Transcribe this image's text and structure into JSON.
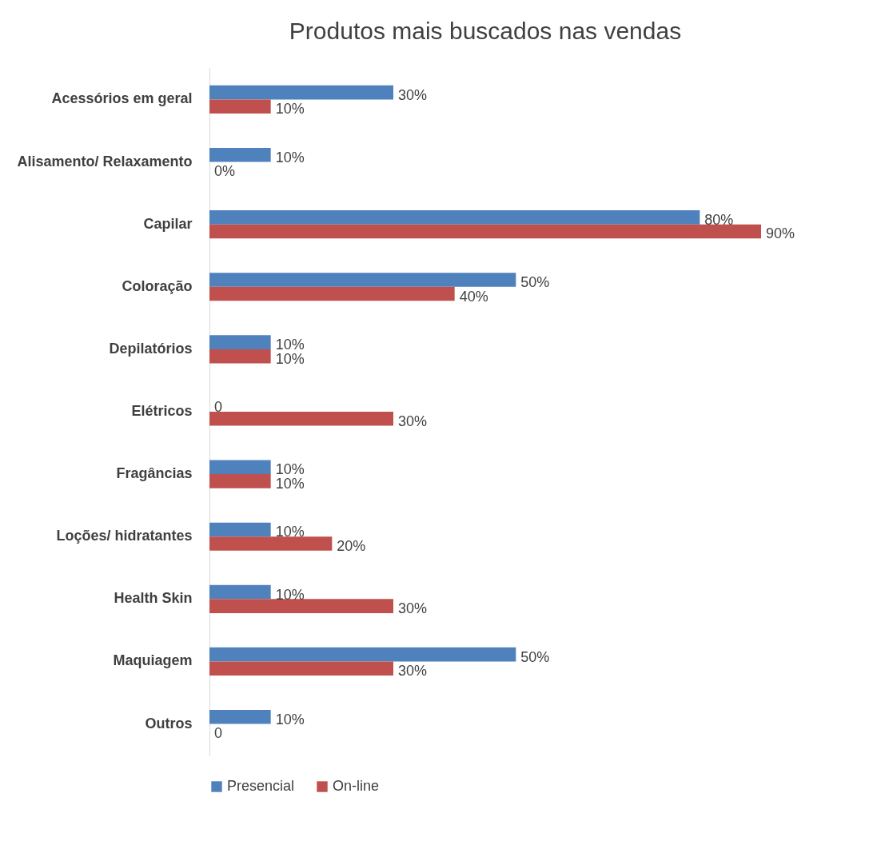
{
  "chart_data": {
    "type": "bar",
    "orientation": "horizontal",
    "title": "Produtos mais buscados nas vendas",
    "categories": [
      "Acessórios em geral",
      "Alisamento/ Relaxamento",
      "Capilar",
      "Coloração",
      "Depilatórios",
      "Elétricos",
      "Fragâncias",
      "Loções/ hidratantes",
      "Health Skin",
      "Maquiagem",
      "Outros"
    ],
    "series": [
      {
        "name": "Presencial",
        "color": "#4f81bd",
        "values": [
          30,
          10,
          80,
          50,
          10,
          0,
          10,
          10,
          10,
          50,
          10
        ],
        "value_labels": [
          "30%",
          "10%",
          "80%",
          "50%",
          "10%",
          "0",
          "10%",
          "10%",
          "10%",
          "50%",
          "10%"
        ]
      },
      {
        "name": "On-line",
        "color": "#c0504d",
        "values": [
          10,
          0,
          90,
          40,
          10,
          30,
          10,
          20,
          30,
          30,
          0
        ],
        "value_labels": [
          "10%",
          "0%",
          "90%",
          "40%",
          "10%",
          "30%",
          "10%",
          "20%",
          "30%",
          "30%",
          "0"
        ]
      }
    ],
    "legend": "bottom"
  }
}
